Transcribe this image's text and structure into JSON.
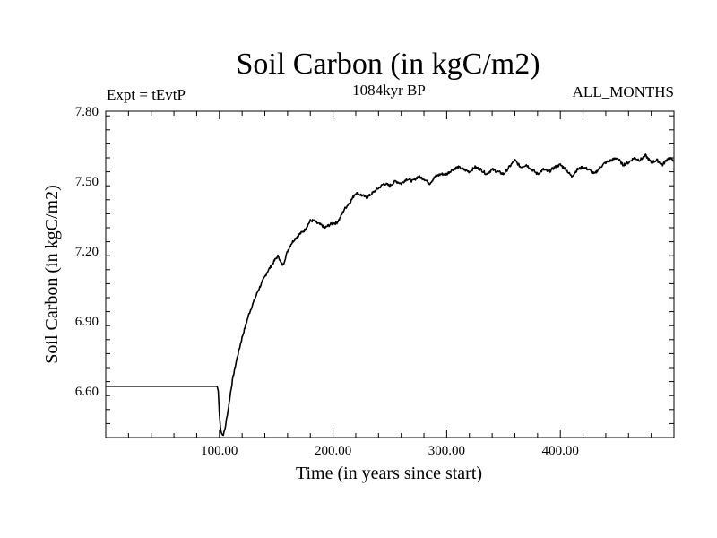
{
  "chart_data": {
    "type": "line",
    "title": "Soil Carbon (in kgC/m2)",
    "subtitle_left": "Expt = tEvtP",
    "subtitle_center": "1084kyr BP",
    "subtitle_right": "ALL_MONTHS",
    "xlabel": "Time (in years since start)",
    "ylabel": "Soil Carbon (in kgC/m2)",
    "xlim": [
      0,
      500
    ],
    "ylim": [
      6.4,
      7.8
    ],
    "xticks": [
      100,
      200,
      300,
      400
    ],
    "xtick_labels": [
      "100.00",
      "200.00",
      "300.00",
      "400.00"
    ],
    "yticks": [
      6.6,
      6.9,
      7.2,
      7.5,
      7.8
    ],
    "ytick_labels": [
      "6.60",
      "6.90",
      "7.20",
      "7.50",
      "7.80"
    ],
    "series": [
      {
        "name": "Soil Carbon",
        "color": "#000000",
        "x": [
          0,
          98,
          99,
          100,
          101,
          102,
          103,
          104,
          105,
          106,
          108,
          110,
          112,
          115,
          118,
          120,
          123,
          126,
          130,
          134,
          138,
          142,
          146,
          150,
          152,
          154,
          156,
          158,
          160,
          163,
          166,
          170,
          175,
          180,
          183,
          186,
          190,
          193,
          196,
          200,
          203,
          206,
          210,
          215,
          220,
          225,
          230,
          235,
          240,
          245,
          250,
          255,
          260,
          265,
          270,
          275,
          280,
          285,
          290,
          295,
          300,
          305,
          310,
          315,
          320,
          325,
          330,
          335,
          340,
          345,
          350,
          355,
          360,
          365,
          370,
          375,
          380,
          385,
          390,
          395,
          400,
          405,
          410,
          415,
          420,
          425,
          430,
          435,
          440,
          445,
          450,
          455,
          460,
          465,
          470,
          475,
          480,
          485,
          490,
          495,
          500
        ],
        "values": [
          6.62,
          6.62,
          6.6,
          6.5,
          6.44,
          6.42,
          6.41,
          6.42,
          6.44,
          6.47,
          6.53,
          6.6,
          6.66,
          6.73,
          6.79,
          6.83,
          6.88,
          6.93,
          6.98,
          7.03,
          7.07,
          7.11,
          7.14,
          7.17,
          7.18,
          7.15,
          7.14,
          7.17,
          7.2,
          7.23,
          7.25,
          7.27,
          7.29,
          7.33,
          7.33,
          7.32,
          7.31,
          7.3,
          7.31,
          7.32,
          7.32,
          7.34,
          7.38,
          7.41,
          7.45,
          7.44,
          7.43,
          7.45,
          7.47,
          7.49,
          7.48,
          7.5,
          7.49,
          7.51,
          7.5,
          7.52,
          7.51,
          7.49,
          7.52,
          7.53,
          7.53,
          7.55,
          7.56,
          7.55,
          7.54,
          7.56,
          7.55,
          7.53,
          7.55,
          7.54,
          7.53,
          7.56,
          7.59,
          7.56,
          7.57,
          7.55,
          7.53,
          7.55,
          7.54,
          7.56,
          7.57,
          7.55,
          7.52,
          7.55,
          7.56,
          7.55,
          7.53,
          7.56,
          7.58,
          7.59,
          7.6,
          7.57,
          7.58,
          7.6,
          7.59,
          7.61,
          7.58,
          7.59,
          7.57,
          7.6,
          7.59
        ]
      }
    ]
  }
}
